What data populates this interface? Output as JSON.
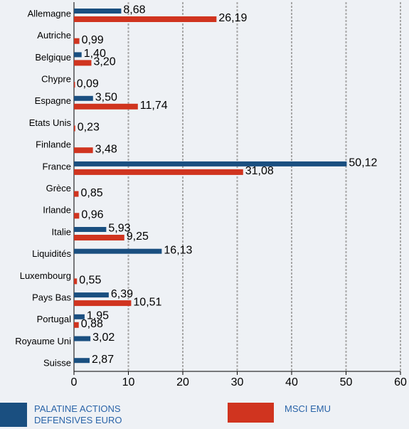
{
  "chart_data": {
    "type": "bar",
    "orientation": "horizontal",
    "categories": [
      "Allemagne",
      "Autriche",
      "Belgique",
      "Chypre",
      "Espagne",
      "Etats Unis",
      "Finlande",
      "France",
      "Grèce",
      "Irlande",
      "Italie",
      "Liquidités",
      "Luxembourg",
      "Pays Bas",
      "Portugal",
      "Royaume Uni",
      "Suisse"
    ],
    "series": [
      {
        "name": "PALATINE ACTIONS DEFENSIVES EURO",
        "color": "#1a4f80",
        "values": [
          8.68,
          null,
          1.4,
          null,
          3.5,
          null,
          null,
          50.12,
          null,
          null,
          5.93,
          16.13,
          null,
          6.39,
          1.95,
          3.02,
          2.87
        ],
        "value_labels": [
          "8,68",
          null,
          "1,40",
          null,
          "3,50",
          null,
          null,
          "50,12",
          null,
          null,
          "5,93",
          "16,13",
          null,
          "6,39",
          "1,95",
          "3,02",
          "2,87"
        ]
      },
      {
        "name": "MSCI EMU",
        "color": "#d0341f",
        "values": [
          26.19,
          0.99,
          3.2,
          0.09,
          11.74,
          0.23,
          3.48,
          31.08,
          0.85,
          0.96,
          9.25,
          null,
          0.55,
          10.51,
          0.88,
          null,
          null
        ],
        "value_labels": [
          "26,19",
          "0,99",
          "3,20",
          "0,09",
          "11,74",
          "0,23",
          "3,48",
          "31,08",
          "0,85",
          "0,96",
          "9,25",
          null,
          "0,55",
          "10,51",
          "0,88",
          null,
          null
        ]
      }
    ],
    "xlim": [
      0,
      60
    ],
    "xticks": [
      0,
      10,
      20,
      30,
      40,
      50,
      60
    ],
    "grid": true
  }
}
